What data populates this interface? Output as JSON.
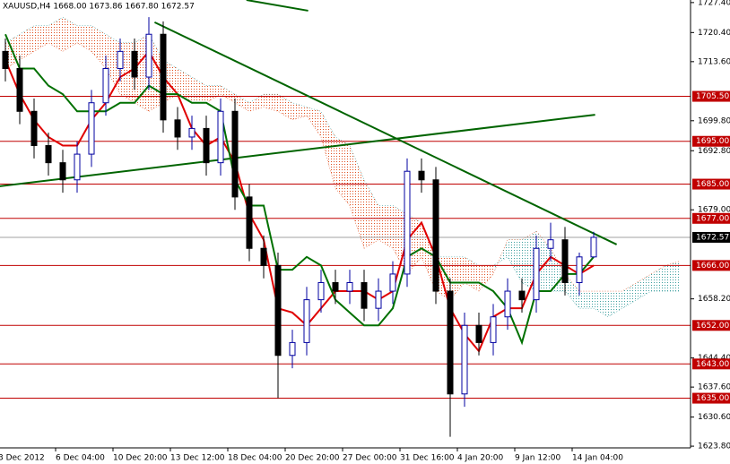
{
  "chart_data": {
    "type": "candlestick",
    "title": "XAUUSD,H4  1668.00 1673.86 1667.80 1672.57",
    "categories": [
      "3 Dec 2012",
      null,
      null,
      null,
      "6 Dec 04:00",
      null,
      null,
      null,
      "10 Dec 20:00",
      null,
      null,
      null,
      "13 Dec 12:00",
      null,
      null,
      null,
      "18 Dec 04:00",
      null,
      null,
      null,
      "20 Dec 20:00",
      null,
      null,
      null,
      "27 Dec 00:00",
      null,
      null,
      null,
      "31 Dec 16:00",
      null,
      null,
      null,
      "4 Jan 20:00",
      null,
      null,
      null,
      "9 Jan 12:00",
      null,
      null,
      null,
      "14 Jan 04:00",
      null
    ],
    "open": [
      1716,
      1712,
      1702,
      1694,
      1690,
      1686,
      1692,
      1704,
      1712,
      1716,
      1710,
      1720,
      1700,
      1696,
      1698,
      1690,
      1702,
      1682,
      1670,
      1666,
      1645,
      1648,
      1658,
      1662,
      1660,
      1662,
      1656,
      1660,
      1664,
      1688,
      1686,
      1660,
      1636,
      1652,
      1648,
      1654,
      1660,
      1658,
      1670,
      1672,
      1662,
      1668
    ],
    "high": [
      1719,
      1715,
      1705,
      1697,
      1693,
      1695,
      1707,
      1715,
      1719,
      1719,
      1724,
      1723,
      1703,
      1701,
      1701,
      1705,
      1705,
      1685,
      1673,
      1669,
      1651,
      1661,
      1665,
      1665,
      1665,
      1665,
      1663,
      1667,
      1691,
      1691,
      1689,
      1663,
      1655,
      1655,
      1657,
      1663,
      1663,
      1673,
      1676,
      1675,
      1669,
      1673.86
    ],
    "low": [
      1709,
      1699,
      1691,
      1687,
      1683,
      1683,
      1689,
      1701,
      1709,
      1707,
      1707,
      1697,
      1693,
      1693,
      1687,
      1687,
      1679,
      1667,
      1663,
      1635,
      1642,
      1645,
      1655,
      1657,
      1657,
      1653,
      1653,
      1657,
      1661,
      1683,
      1657,
      1626,
      1633,
      1645,
      1645,
      1651,
      1655,
      1655,
      1667,
      1659,
      1659,
      1667.8
    ],
    "close": [
      1712,
      1702,
      1694,
      1690,
      1686,
      1692,
      1704,
      1712,
      1716,
      1710,
      1720,
      1700,
      1696,
      1698,
      1690,
      1702,
      1682,
      1670,
      1666,
      1645,
      1648,
      1658,
      1662,
      1660,
      1662,
      1656,
      1660,
      1664,
      1688,
      1686,
      1660,
      1636,
      1652,
      1648,
      1654,
      1660,
      1658,
      1670,
      1672,
      1662,
      1668,
      1672.57
    ],
    "series": [
      {
        "color": "#e00000",
        "values": [
          1714,
          1706,
          1700,
          1696,
          1694,
          1694,
          1700,
          1704,
          1710,
          1712,
          1716,
          1710,
          1706,
          1698,
          1694,
          1696,
          1690,
          1678,
          1672,
          1656,
          1655,
          1652,
          1656,
          1660,
          1660,
          1660,
          1658,
          1660,
          1672,
          1676,
          1668,
          1656,
          1650,
          1646,
          1654,
          1656,
          1656,
          1664,
          1668,
          1666,
          1664,
          1666
        ]
      },
      {
        "color": "#007000",
        "values": [
          1720,
          1712,
          1712,
          1708,
          1706,
          1702,
          1702,
          1702,
          1704,
          1704,
          1708,
          1706,
          1706,
          1704,
          1704,
          1702,
          1686,
          1680,
          1680,
          1665,
          1665,
          1668,
          1666,
          1658,
          1655,
          1652,
          1652,
          1656,
          1668,
          1670,
          1668,
          1662,
          1662,
          1662,
          1660,
          1656,
          1648,
          1660,
          1660,
          1664,
          1664,
          1668
        ]
      }
    ],
    "cloud": {
      "span_a": [
        1712,
        1714,
        1716,
        1718,
        1716,
        1718,
        1716,
        1712,
        1706,
        1704,
        1702,
        1704,
        1706,
        1704,
        1704,
        1706,
        1704,
        1702,
        1703,
        1702,
        1700,
        1701,
        1696,
        1684,
        1680,
        1670,
        1672,
        1670,
        1664,
        1668,
        1660,
        1658,
        1662,
        1660,
        1664,
        1672,
        1672,
        1674,
        1670,
        1664,
        1660,
        1660,
        1660,
        1660,
        1662,
        1664,
        1666,
        1667
      ],
      "span_b": [
        1718,
        1720,
        1722,
        1722,
        1724,
        1722,
        1722,
        1720,
        1718,
        1718,
        1720,
        1714,
        1712,
        1710,
        1708,
        1708,
        1706,
        1704,
        1706,
        1706,
        1704,
        1703,
        1702,
        1696,
        1694,
        1686,
        1680,
        1680,
        1678,
        1676,
        1668,
        1668,
        1668,
        1666,
        1666,
        1668,
        1662,
        1660,
        1660,
        1660,
        1656,
        1656,
        1654,
        1656,
        1658,
        1660,
        1660,
        1660
      ],
      "bear_color": "#e05020",
      "bull_color": "#40a0a0"
    },
    "trendlines": [
      {
        "color": "#006400",
        "points": [
          [
            10.4,
            1722.8
          ],
          [
            42.6,
            1670.9
          ]
        ]
      },
      {
        "color": "#006400",
        "points": [
          [
            -0.4,
            1684.5
          ],
          [
            41.1,
            1701.2
          ]
        ]
      },
      {
        "color": "#006400",
        "points": [
          [
            16.8,
            1728.0
          ],
          [
            21.1,
            1725.5
          ]
        ]
      }
    ],
    "levels": [
      {
        "value": 1705.5,
        "label": "1705.50"
      },
      {
        "value": 1695,
        "label": "1695.00"
      },
      {
        "value": 1685,
        "label": "1685.00"
      },
      {
        "value": 1677,
        "label": "1677.00"
      },
      {
        "value": 1666,
        "label": "1666.00"
      },
      {
        "value": 1652,
        "label": "1652.00"
      },
      {
        "value": 1643,
        "label": "1643.00"
      },
      {
        "value": 1635,
        "label": "1635.00"
      }
    ],
    "level_color": "#c00000",
    "last_price": 1672.57,
    "ylim": [
      1623.4,
      1728.0
    ],
    "yticks": [
      {
        "value": 1727.4,
        "label": "1727.40"
      },
      {
        "value": 1720.4,
        "label": "1720.40"
      },
      {
        "value": 1713.6,
        "label": "1713.60"
      },
      {
        "value": 1699.8,
        "label": "1699.80"
      },
      {
        "value": 1692.8,
        "label": "1692.80"
      },
      {
        "value": 1679,
        "label": "1679.00"
      },
      {
        "value": 1658.2,
        "label": "1658.20"
      },
      {
        "value": 1644.4,
        "label": "1644.40"
      },
      {
        "value": 1637.6,
        "label": "1637.60"
      },
      {
        "value": 1630.6,
        "label": "1630.60"
      },
      {
        "value": 1623.8,
        "label": "1623.80"
      }
    ]
  }
}
